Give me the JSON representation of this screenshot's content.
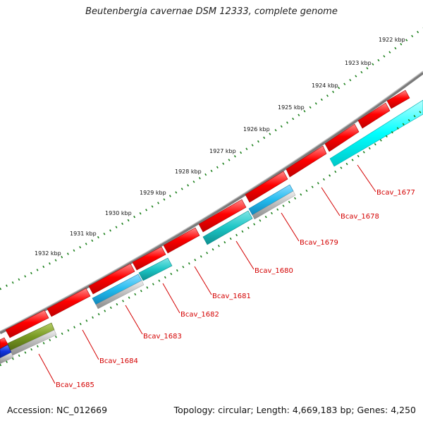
{
  "title": "Beutenbergia cavernae DSM 12333, complete genome",
  "accession": "Accession: NC_012669",
  "topology": "Topology: circular; Length: 4,669,183 bp; Genes: 4,250",
  "colors": {
    "backbone": "#8a8a8a",
    "gene_forward": "#ff0000",
    "gene_teal": "#1cc5c5",
    "gene_cyan": "#00ffff",
    "gene_skyblue": "#22bbee",
    "gene_gray": "#b8b8b8",
    "gene_olive": "#779922",
    "gene_blue": "#1133dd",
    "tick": "#1a7f1a",
    "locus_label": "#d40000"
  },
  "ruler_labels": [
    "1922 kbp",
    "1923 kbp",
    "1924 kbp",
    "1925 kbp",
    "1926 kbp",
    "1927 kbp",
    "1928 kbp",
    "1929 kbp",
    "1930 kbp",
    "1931 kbp",
    "1932 kbp"
  ],
  "locus_tags": [
    "Bcav_1677",
    "Bcav_1678",
    "Bcav_1679",
    "Bcav_1680",
    "Bcav_1681",
    "Bcav_1682",
    "Bcav_1683",
    "Bcav_1684",
    "Bcav_1685"
  ]
}
